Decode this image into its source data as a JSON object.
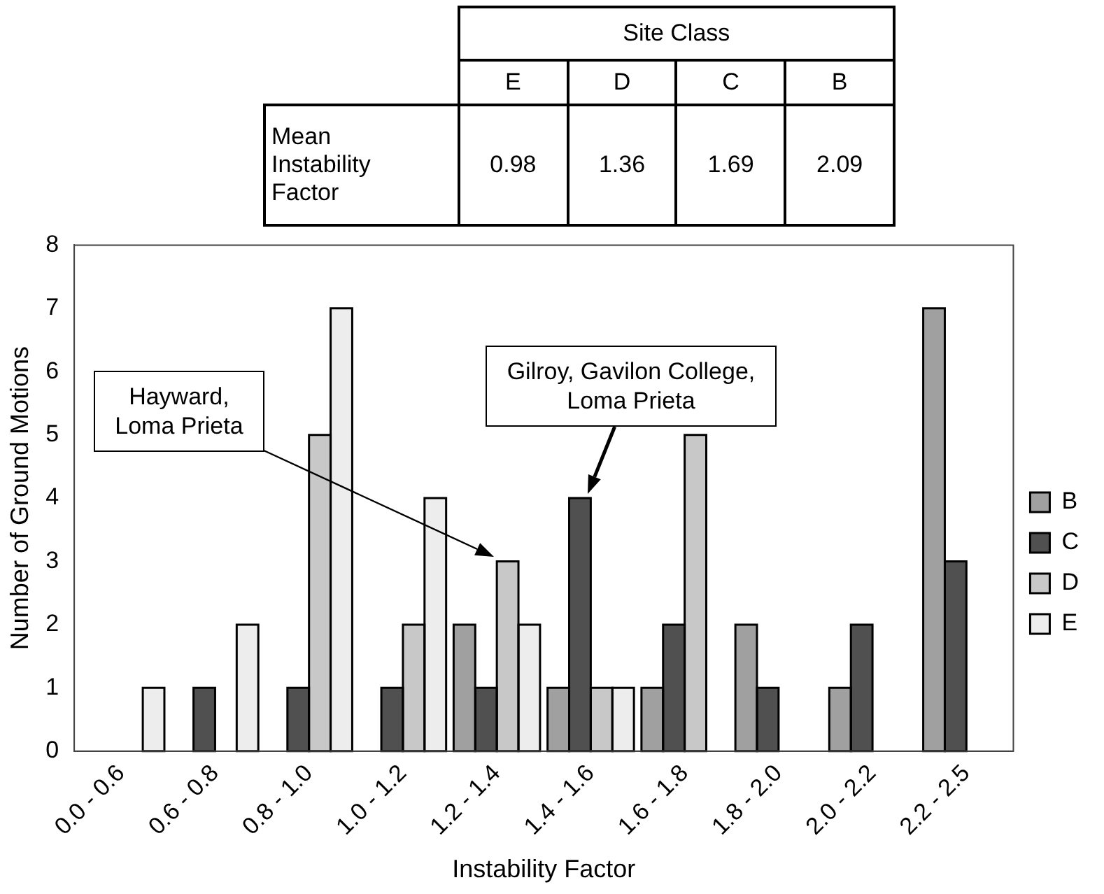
{
  "chart_data": [
    {
      "type": "other",
      "xlabel": "Site Class",
      "categories": [
        "E",
        "D",
        "C",
        "B"
      ],
      "ylabel": "Mean Instability Factor",
      "values": [
        0.98,
        1.36,
        1.69,
        2.09
      ],
      "data_labels": true
    },
    {
      "type": "bar",
      "xlabel": "Instability Factor",
      "ylabel": "Number of Ground Motions",
      "categories": [
        "0.0 - 0.6",
        "0.6 - 0.8",
        "0.8 - 1.0",
        "1.0 - 1.2",
        "1.2 - 1.4",
        "1.4 - 1.6",
        "1.6 - 1.8",
        "1.8 - 2.0",
        "2.0 - 2.2",
        "2.2 - 2.5"
      ],
      "series": [
        {
          "name": "B",
          "color": "#a0a0a0",
          "values": [
            null,
            null,
            null,
            null,
            2,
            1,
            1,
            2,
            1,
            7
          ]
        },
        {
          "name": "C",
          "color": "#505050",
          "values": [
            null,
            1,
            1,
            1,
            1,
            4,
            2,
            1,
            2,
            3
          ]
        },
        {
          "name": "D",
          "color": "#c8c8c8",
          "values": [
            null,
            null,
            5,
            2,
            3,
            1,
            5,
            null,
            null,
            null
          ]
        },
        {
          "name": "E",
          "color": "#ededed",
          "values": [
            1,
            2,
            7,
            4,
            2,
            1,
            null,
            null,
            null,
            null
          ]
        }
      ],
      "ylim": [
        0,
        8
      ],
      "yticks": [
        0,
        1,
        2,
        3,
        4,
        5,
        6,
        7,
        8
      ],
      "grid": false,
      "legend": "right",
      "annotations": [
        "Hayward,\nLoma Prieta",
        "Gilroy, Gavilon College,\nLoma Prieta"
      ]
    }
  ]
}
